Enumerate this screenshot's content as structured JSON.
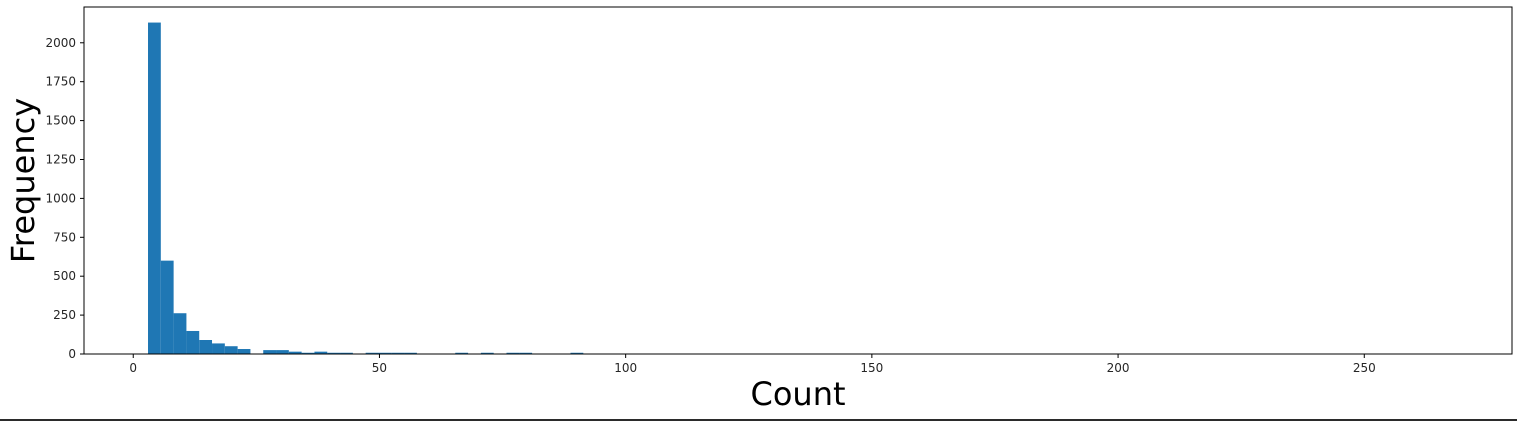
{
  "chart_data": {
    "type": "bar",
    "subtype": "histogram",
    "title": "",
    "xlabel": "Count",
    "ylabel": "Frequency",
    "xlim": [
      -10,
      280
    ],
    "ylim": [
      0,
      2230
    ],
    "xticks": [
      0,
      50,
      100,
      150,
      200,
      250
    ],
    "yticks": [
      0,
      250,
      500,
      750,
      1000,
      1250,
      1500,
      1750,
      2000
    ],
    "grid": false,
    "legend": "none",
    "color": "#1f77b4",
    "bin_width": 2.6,
    "bins": [
      {
        "x0": 3.0,
        "x1": 5.6,
        "count": 2130
      },
      {
        "x0": 5.6,
        "x1": 8.2,
        "count": 600
      },
      {
        "x0": 8.2,
        "x1": 10.8,
        "count": 262
      },
      {
        "x0": 10.8,
        "x1": 13.4,
        "count": 148
      },
      {
        "x0": 13.4,
        "x1": 16.0,
        "count": 90
      },
      {
        "x0": 16.0,
        "x1": 18.6,
        "count": 68
      },
      {
        "x0": 18.6,
        "x1": 21.2,
        "count": 50
      },
      {
        "x0": 21.2,
        "x1": 23.8,
        "count": 32
      },
      {
        "x0": 26.4,
        "x1": 29.0,
        "count": 25
      },
      {
        "x0": 29.0,
        "x1": 31.6,
        "count": 25
      },
      {
        "x0": 31.6,
        "x1": 34.2,
        "count": 15
      },
      {
        "x0": 34.2,
        "x1": 36.8,
        "count": 8
      },
      {
        "x0": 36.8,
        "x1": 39.4,
        "count": 15
      },
      {
        "x0": 39.4,
        "x1": 42.0,
        "count": 8
      },
      {
        "x0": 42.0,
        "x1": 44.6,
        "count": 8
      },
      {
        "x0": 47.2,
        "x1": 49.8,
        "count": 8
      },
      {
        "x0": 49.8,
        "x1": 52.4,
        "count": 8
      },
      {
        "x0": 52.4,
        "x1": 55.0,
        "count": 8
      },
      {
        "x0": 55.0,
        "x1": 57.6,
        "count": 8
      },
      {
        "x0": 65.4,
        "x1": 68.0,
        "count": 8
      },
      {
        "x0": 70.6,
        "x1": 73.2,
        "count": 8
      },
      {
        "x0": 75.8,
        "x1": 78.4,
        "count": 8
      },
      {
        "x0": 78.4,
        "x1": 81.0,
        "count": 8
      },
      {
        "x0": 88.8,
        "x1": 91.4,
        "count": 8
      }
    ]
  }
}
